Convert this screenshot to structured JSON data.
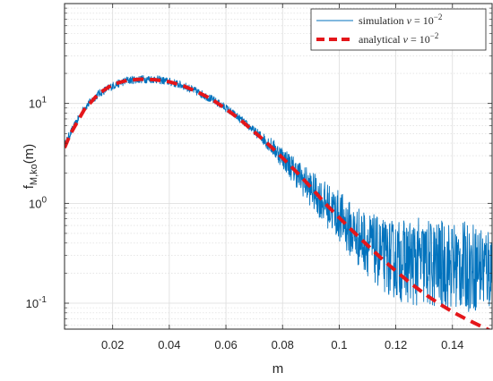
{
  "chart_data": {
    "type": "line",
    "title": "",
    "xlabel": "m",
    "ylabel": "f",
    "ylabel_sub": "M,ko",
    "ylabel_suffix": "(m)",
    "xlim": [
      0.003,
      0.154
    ],
    "ylim": [
      0.055,
      100
    ],
    "yscale": "log",
    "grid": true,
    "minor_grid": true,
    "legend_position": "top-right",
    "x_ticks": [
      0.02,
      0.04,
      0.06,
      0.08,
      0.1,
      0.12,
      0.14
    ],
    "x_tick_labels": [
      "0.02",
      "0.04",
      "0.06",
      "0.08",
      "0.1",
      "0.12",
      "0.14"
    ],
    "y_ticks": [
      {
        "value": 0.1,
        "base": "10",
        "exp": "-1"
      },
      {
        "value": 1,
        "base": "10",
        "exp": "0"
      },
      {
        "value": 10,
        "base": "10",
        "exp": "1"
      }
    ],
    "series": [
      {
        "name": "simulation ν = 10⁻²",
        "legend_prefix": "simulation ",
        "legend_var": "ν",
        "legend_eq": " = 10",
        "legend_exp": "−2",
        "color": "#0072BD",
        "style": "solid-noisy",
        "x": [
          0.003,
          0.005,
          0.01,
          0.015,
          0.02,
          0.025,
          0.03,
          0.035,
          0.04,
          0.045,
          0.05,
          0.055,
          0.06,
          0.065,
          0.07,
          0.075,
          0.08,
          0.085,
          0.09,
          0.095,
          0.1,
          0.105,
          0.11,
          0.115,
          0.12,
          0.125,
          0.13,
          0.135,
          0.14,
          0.145,
          0.15,
          0.154
        ],
        "y": [
          3.8,
          5.0,
          9.0,
          12.5,
          15.0,
          17.0,
          17.5,
          17.5,
          16.5,
          15.0,
          13.0,
          11.0,
          9.0,
          7.0,
          5.3,
          4.0,
          2.9,
          2.0,
          1.4,
          1.0,
          0.75,
          0.5,
          0.4,
          0.3,
          0.27,
          0.26,
          0.25,
          0.24,
          0.24,
          0.23,
          0.23,
          0.23
        ]
      },
      {
        "name": "analytical ν = 10⁻²",
        "legend_prefix": "analytical ",
        "legend_var": "ν",
        "legend_eq": " = 10",
        "legend_exp": "−2",
        "color": "#E4161A",
        "style": "dashed",
        "x": [
          0.003,
          0.005,
          0.01,
          0.015,
          0.02,
          0.025,
          0.03,
          0.035,
          0.04,
          0.045,
          0.05,
          0.055,
          0.06,
          0.065,
          0.07,
          0.075,
          0.08,
          0.085,
          0.09,
          0.095,
          0.1,
          0.105,
          0.11,
          0.115,
          0.12,
          0.125,
          0.13,
          0.135,
          0.14,
          0.145,
          0.15,
          0.154
        ],
        "y": [
          3.6,
          4.9,
          8.7,
          12.5,
          15.5,
          17.0,
          17.5,
          17.3,
          16.5,
          15.0,
          13.0,
          11.0,
          8.8,
          6.9,
          5.2,
          3.9,
          2.85,
          2.05,
          1.45,
          1.0,
          0.72,
          0.52,
          0.38,
          0.28,
          0.21,
          0.16,
          0.125,
          0.1,
          0.082,
          0.069,
          0.059,
          0.052
        ]
      }
    ]
  }
}
